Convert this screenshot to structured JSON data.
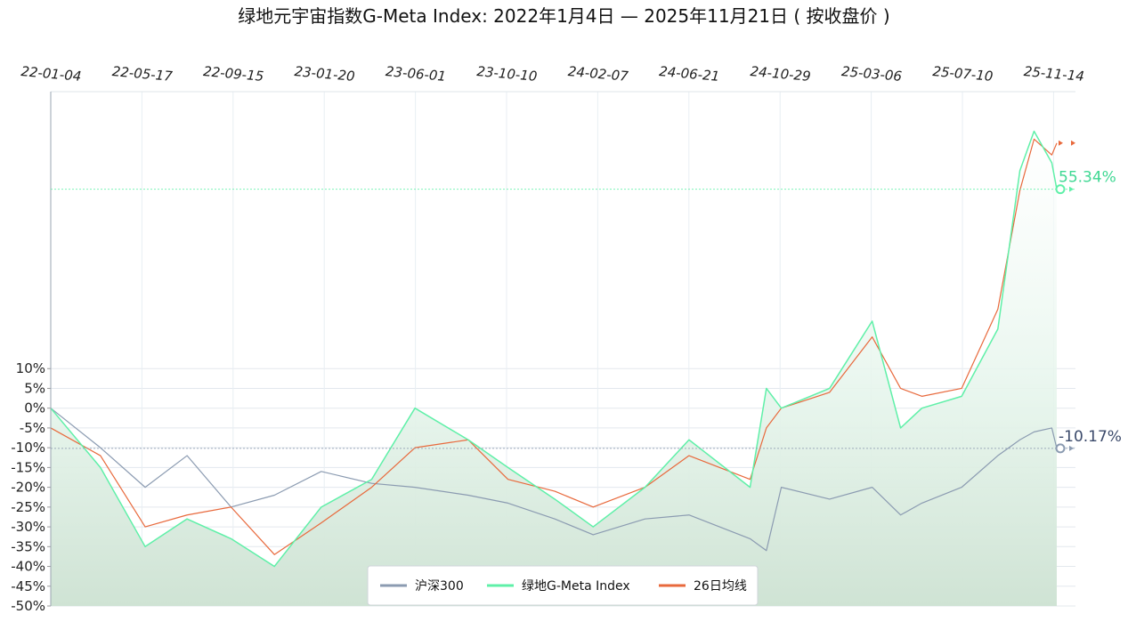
{
  "title": "绿地元宇宙指数G-Meta Index:  2022年1月4日  —  2025年11月21日  ( 按收盘价 )",
  "chart_data": {
    "type": "line",
    "title": "绿地元宇宙指数G-Meta Index:  2022年1月4日  —  2025年11月21日  ( 按收盘价 )",
    "x_tick_labels": [
      "22-01-04",
      "22-05-17",
      "22-09-15",
      "23-01-20",
      "23-06-01",
      "23-10-10",
      "24-02-07",
      "24-06-21",
      "24-10-29",
      "25-03-06",
      "25-07-10",
      "25-11-14"
    ],
    "y_tick_labels": [
      "10%",
      "5%",
      "0%",
      "-5%",
      "-10%",
      "-15%",
      "-20%",
      "-25%",
      "-30%",
      "-35%",
      "-40%",
      "-45%",
      "-50%"
    ],
    "y_ticks": [
      10,
      5,
      0,
      -5,
      -10,
      -15,
      -20,
      -25,
      -30,
      -35,
      -40,
      -45,
      -50
    ],
    "ylim": [
      -50,
      80
    ],
    "grid": true,
    "legend_position": "bottom-center",
    "x": [
      "2022-01-04",
      "2022-03-15",
      "2022-05-17",
      "2022-07-15",
      "2022-09-15",
      "2022-11-15",
      "2023-01-20",
      "2023-04-01",
      "2023-06-01",
      "2023-08-15",
      "2023-10-10",
      "2023-12-15",
      "2024-02-07",
      "2024-04-20",
      "2024-06-21",
      "2024-09-15",
      "2024-10-08",
      "2024-10-29",
      "2025-01-05",
      "2025-03-06",
      "2025-04-15",
      "2025-05-15",
      "2025-07-10",
      "2025-08-30",
      "2025-09-30",
      "2025-10-20",
      "2025-11-14",
      "2025-11-21"
    ],
    "series": [
      {
        "name": "沪深300",
        "color": "#8b9bb1",
        "values": [
          0,
          -10,
          -20,
          -12,
          -25,
          -22,
          -16,
          -19,
          -20,
          -22,
          -24,
          -28,
          -32,
          -28,
          -27,
          -33,
          -36,
          -20,
          -23,
          -20,
          -27,
          -24,
          -20,
          -12,
          -8,
          -6,
          -5,
          -10.17
        ]
      },
      {
        "name": "绿地G-Meta Index",
        "color": "#5ff0a8",
        "values": [
          0,
          -15,
          -35,
          -28,
          -33,
          -40,
          -25,
          -18,
          0,
          -8,
          -15,
          -23,
          -30,
          -20,
          -8,
          -20,
          5,
          0,
          5,
          22,
          -5,
          0,
          3,
          20,
          60,
          70,
          62,
          55.34
        ]
      },
      {
        "name": "26日均线",
        "color": "#e8693c",
        "values": [
          -5,
          -12,
          -30,
          -27,
          -25,
          -37,
          -29,
          -20,
          -10,
          -8,
          -18,
          -21,
          -25,
          -20,
          -12,
          -18,
          -5,
          0,
          4,
          18,
          5,
          3,
          5,
          25,
          55,
          68,
          64,
          67
        ]
      }
    ],
    "value_labels": [
      {
        "series": "绿地G-Meta Index",
        "text": "55.34%",
        "value": 55.34,
        "color": "#3fd893"
      },
      {
        "series": "沪深300",
        "text": "-10.17%",
        "value": -10.17,
        "color": "#3b4a6b"
      }
    ]
  },
  "legend": [
    {
      "label": "沪深300",
      "color": "#8b9bb1"
    },
    {
      "label": "绿地G-Meta Index",
      "color": "#5ff0a8"
    },
    {
      "label": "26日均线",
      "color": "#e8693c"
    }
  ]
}
